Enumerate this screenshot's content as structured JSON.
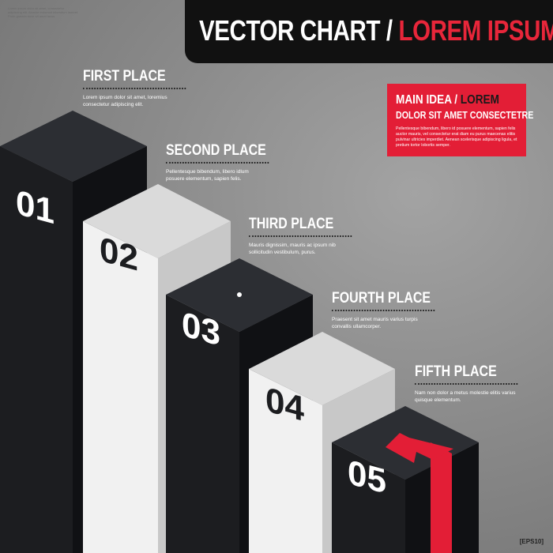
{
  "header": {
    "title_part1": "VECTOR CHART / ",
    "title_part2": "LOREM IPSUM"
  },
  "top_left_small_text": "Lorem ipsum dolor sit amet, consectetur adipiscing elit. Aenean euismod bibendum laoreet. Proin gravida dolor sit amet lacus.",
  "places": [
    {
      "title": "FIRST PLACE",
      "text": "Lorem ipsum dolor sit amet, loremius consectetur adipiscing elit.",
      "number": "01"
    },
    {
      "title": "SECOND PLACE",
      "text": "Pellentesque bibendum, libero idlum posuere elementum, sapien felis.",
      "number": "02"
    },
    {
      "title": "THIRD PLACE",
      "text": "Mauris dignissim, mauris ac ipsum nib sollicitudin vestibulum, purus.",
      "number": "03"
    },
    {
      "title": "FOURTH PLACE",
      "text": "Praesent sit amet mauris varius turpis convallis ullamcorper.",
      "number": "04"
    },
    {
      "title": "FIFTH PLACE",
      "text": "Nam non dolor a metus molestie elitis varius quisque elementum.",
      "number": "05"
    }
  ],
  "callout": {
    "line1_white": "MAIN IDEA / ",
    "line1_dark": "LOREM",
    "line2": "DOLOR SIT AMET CONSECTETRE",
    "body": "Pellentesque bibendum, libero id posuere elementum, sapien felis auctor mauris, vel consectetur erat diam eu purus maecenas elitis pulvinar ultricies imperdiet. Aenean scelerisque adipiscing ligula, et pretium tortor lobortis semper."
  },
  "badge": "[EPS10]",
  "colors": {
    "dark": "#1c1d20",
    "light": "#eeeeee",
    "accent": "#e31e36"
  }
}
